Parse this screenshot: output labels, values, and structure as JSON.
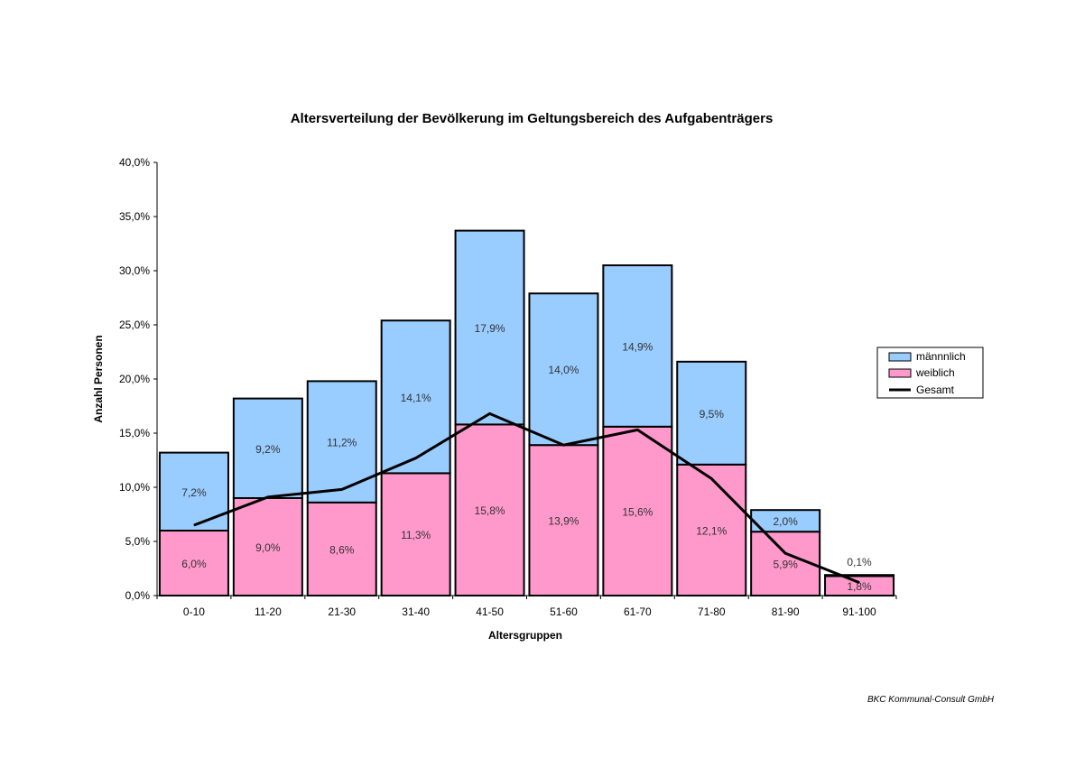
{
  "chart_data": {
    "type": "bar",
    "stacked": true,
    "title": "Altersverteilung der Bevölkerung im Geltungsbereich des Aufgabenträgers",
    "xlabel": "Altersgruppen",
    "ylabel": "Anzahl Personen",
    "ylim": [
      0,
      40
    ],
    "yticks": [
      "0,0%",
      "5,0%",
      "10,0%",
      "15,0%",
      "20,0%",
      "25,0%",
      "30,0%",
      "35,0%",
      "40,0%"
    ],
    "categories": [
      "0-10",
      "11-20",
      "21-30",
      "31-40",
      "41-50",
      "51-60",
      "61-70",
      "71-80",
      "81-90",
      "91-100"
    ],
    "series": [
      {
        "name": "weiblich",
        "kind": "bar",
        "color": "#ff99cc",
        "values": [
          6.0,
          9.0,
          8.6,
          11.3,
          15.8,
          13.9,
          15.6,
          12.1,
          5.9,
          1.8
        ],
        "labels": [
          "6,0%",
          "9,0%",
          "8,6%",
          "11,3%",
          "15,8%",
          "13,9%",
          "15,6%",
          "12,1%",
          "5,9%",
          "1,8%"
        ]
      },
      {
        "name": "männnlich",
        "kind": "bar",
        "color": "#99ccff",
        "values": [
          7.2,
          9.2,
          11.2,
          14.1,
          17.9,
          14.0,
          14.9,
          9.5,
          2.0,
          0.1
        ],
        "labels": [
          "7,2%",
          "9,2%",
          "11,2%",
          "14,1%",
          "17,9%",
          "14,0%",
          "14,9%",
          "9,5%",
          "2,0%",
          "0,1%"
        ]
      },
      {
        "name": "Gesamt",
        "kind": "line",
        "color": "#000000",
        "values": [
          6.5,
          9.1,
          9.8,
          12.7,
          16.8,
          13.9,
          15.3,
          10.8,
          3.9,
          1.2
        ]
      }
    ],
    "legend": {
      "position": "right",
      "items": [
        "männnlich",
        "weiblich",
        "Gesamt"
      ]
    },
    "grid": false
  },
  "footer": "BKC Kommunal-Consult GmbH"
}
